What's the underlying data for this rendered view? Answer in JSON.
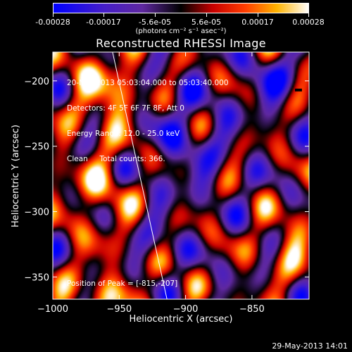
{
  "colorbar": {
    "tick_labels": [
      "-0.00028",
      "-0.00017",
      "-5.6e-05",
      "5.6e-05",
      "0.00017",
      "0.00028"
    ],
    "unit": "(photons cm⁻² s⁻¹ asec⁻²)",
    "colors": [
      "#0000ff",
      "#4a1a7a",
      "#000000",
      "#ff0000",
      "#ffff00",
      "#ffffff"
    ]
  },
  "chart_data": {
    "type": "heatmap",
    "title": "Reconstructed RHESSI Image",
    "xlabel": "Heliocentric X (arcsec)",
    "ylabel": "Heliocentric Y (arcsec)",
    "xlim": [
      -1000,
      -807
    ],
    "ylim": [
      -367,
      -178
    ],
    "xticks": [
      -1000,
      -950,
      -900,
      -850
    ],
    "yticks": [
      -200,
      -250,
      -300,
      -350
    ],
    "xtick_labels": [
      "−1000",
      "−950",
      "−900",
      "−850"
    ],
    "ytick_labels": [
      "−200",
      "−250",
      "−300",
      "−350"
    ],
    "limb_line": [
      [
        -955,
        -178
      ],
      [
        -914,
        -367
      ]
    ],
    "peak_position": [
      -815,
      -207
    ],
    "annotations": [
      "20-Nov-2013 05:03:04.000 to 05:03:40.000",
      "Detectors: 4F 5F 6F 7F 8F, Att 0",
      "Energy Range: 12.0 - 25.0 keV",
      "Clean     Total counts: 366."
    ],
    "peak_label": "Position of Peak = [-815,-207]"
  },
  "timestamp": "29-May-2013 14:01"
}
